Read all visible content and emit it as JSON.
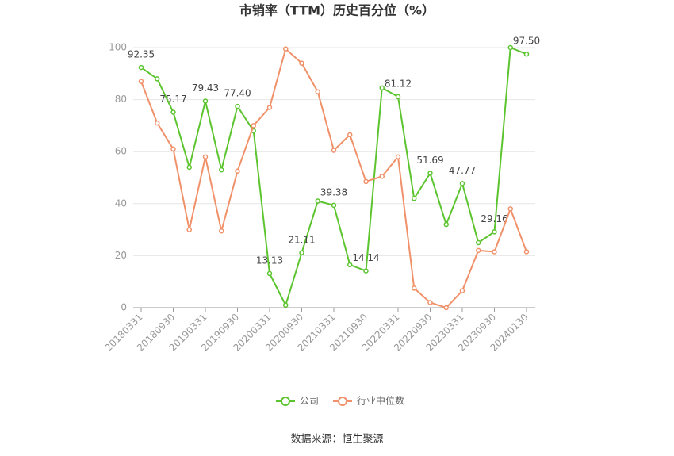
{
  "chart_data": {
    "type": "line",
    "title": "市销率（TTM）历史百分位（%）",
    "categories": [
      "20180331",
      null,
      "20180930",
      null,
      "20190331",
      null,
      "20190930",
      null,
      "20200331",
      null,
      "20200930",
      null,
      "20210331",
      null,
      "20210930",
      null,
      "20220331",
      null,
      "20220930",
      null,
      "20230331",
      null,
      "20230930",
      null,
      "20240130"
    ],
    "series": [
      {
        "name": "公司",
        "color": "#5cc42f",
        "values": [
          92.35,
          88,
          75.17,
          54,
          79.43,
          53,
          77.4,
          68,
          13.13,
          1,
          21.11,
          41,
          39.38,
          16.5,
          14.14,
          84.5,
          81.12,
          42,
          51.69,
          32,
          47.77,
          25,
          29.16,
          100,
          97.5
        ],
        "value_labels": [
          "92.35",
          null,
          "75.17",
          null,
          "79.43",
          null,
          "77.40",
          null,
          "13.13",
          null,
          "21.11",
          null,
          "39.38",
          null,
          "14.14",
          null,
          "81.12",
          null,
          "51.69",
          null,
          "47.77",
          null,
          "29.16",
          null,
          "97.50"
        ]
      },
      {
        "name": "行业中位数",
        "color": "#f0916a",
        "values": [
          87,
          71,
          61,
          30,
          58,
          29.5,
          52.5,
          70,
          77,
          99.5,
          94,
          83,
          60.5,
          66.5,
          48.5,
          50.5,
          58,
          7.5,
          2,
          0,
          6.5,
          22,
          21.5,
          38,
          21.5
        ]
      }
    ],
    "ylim": [
      0,
      100
    ],
    "yticks": [
      0,
      20,
      40,
      60,
      80,
      100
    ],
    "grid": true,
    "legend": "bottom",
    "source": "数据来源：恒生聚源"
  }
}
